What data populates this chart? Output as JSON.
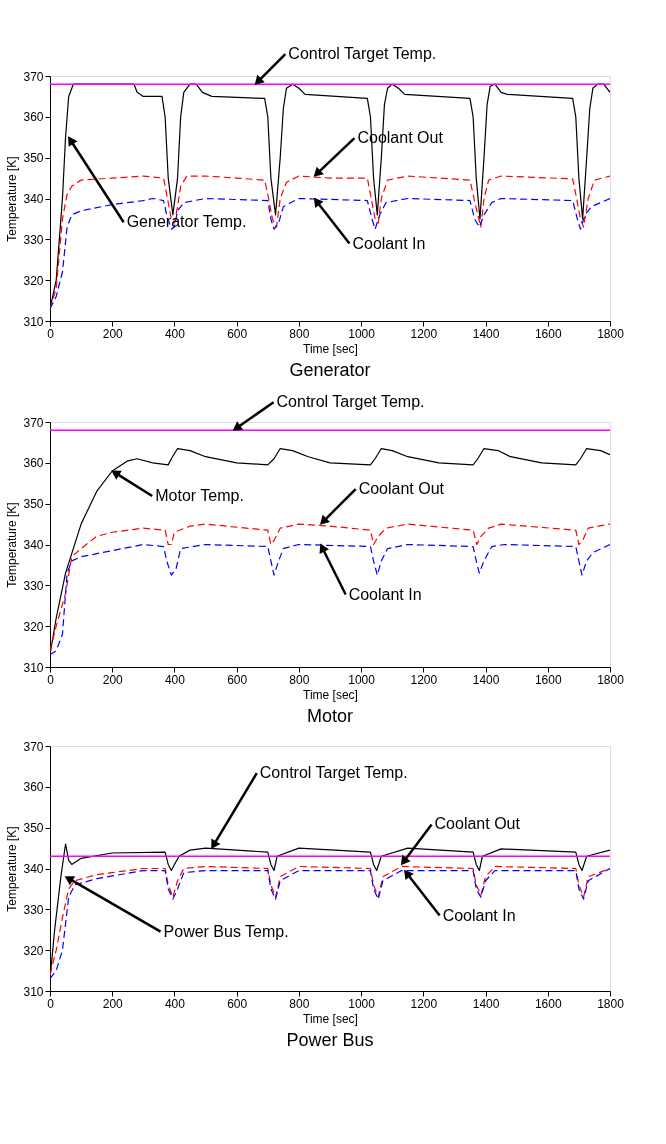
{
  "chart_data": [
    {
      "type": "line",
      "title": "Generator",
      "xlabel": "Time [sec]",
      "ylabel": "Temperature [K]",
      "xlim": [
        0,
        1800
      ],
      "ylim": [
        310,
        370
      ],
      "xticks": [
        0,
        200,
        400,
        600,
        800,
        1000,
        1200,
        1400,
        1600,
        1800
      ],
      "yticks": [
        310,
        320,
        330,
        340,
        350,
        360,
        370
      ],
      "grid": false,
      "series": [
        {
          "color": "#000000",
          "line_style": "solid",
          "x": [
            0,
            20,
            40,
            50,
            60,
            75,
            270,
            280,
            300,
            360,
            370,
            380,
            395,
            410,
            420,
            430,
            450,
            470,
            490,
            520,
            690,
            700,
            710,
            725,
            740,
            750,
            760,
            780,
            800,
            820,
            1020,
            1030,
            1040,
            1052,
            1065,
            1075,
            1085,
            1100,
            1120,
            1140,
            1350,
            1360,
            1370,
            1382,
            1395,
            1405,
            1415,
            1430,
            1450,
            1470,
            1680,
            1690,
            1700,
            1712,
            1725,
            1735,
            1745,
            1760,
            1780,
            1800
          ],
          "values": [
            313,
            320,
            340,
            355,
            365,
            368,
            368,
            366,
            365,
            365,
            360,
            345,
            336,
            345,
            360,
            366,
            368,
            368,
            366,
            365,
            364.5,
            360,
            345,
            336,
            350,
            362,
            367,
            368,
            367,
            365.5,
            364.5,
            360,
            345,
            336,
            350,
            363,
            367,
            368,
            367,
            365.5,
            364.5,
            360,
            345,
            335,
            350,
            363,
            367.5,
            368,
            366,
            365.5,
            364.5,
            360,
            345,
            335,
            350,
            362,
            367,
            368,
            368,
            366
          ]
        },
        {
          "color": "#ff0000",
          "line_style": "dashed",
          "x": [
            0,
            20,
            40,
            55,
            70,
            100,
            200,
            300,
            365,
            375,
            390,
            400,
            410,
            420,
            440,
            500,
            600,
            690,
            700,
            715,
            728,
            740,
            760,
            800,
            900,
            1020,
            1030,
            1045,
            1055,
            1065,
            1085,
            1150,
            1350,
            1360,
            1375,
            1385,
            1395,
            1410,
            1450,
            1680,
            1690,
            1705,
            1715,
            1730,
            1750,
            1800
          ],
          "values": [
            313,
            318,
            335,
            341,
            343,
            344.5,
            345,
            345.5,
            345,
            341,
            335,
            334,
            338,
            343,
            345.5,
            345.5,
            345,
            344.5,
            341,
            335,
            333,
            340,
            344,
            345.5,
            345,
            345,
            341,
            335,
            334,
            340,
            344.5,
            345.5,
            344.5,
            341,
            336,
            333,
            340,
            344.5,
            345.5,
            344.8,
            341,
            335,
            333,
            340,
            344.5,
            345.5
          ]
        },
        {
          "color": "#0000ff",
          "line_style": "dashed",
          "x": [
            0,
            20,
            40,
            55,
            70,
            100,
            200,
            300,
            330,
            365,
            375,
            390,
            400,
            410,
            430,
            500,
            700,
            710,
            720,
            735,
            750,
            800,
            1020,
            1035,
            1045,
            1060,
            1080,
            1150,
            1350,
            1365,
            1380,
            1395,
            1420,
            1450,
            1680,
            1695,
            1705,
            1720,
            1740,
            1800
          ],
          "values": [
            313,
            316,
            322,
            333,
            336,
            337,
            338.5,
            339.5,
            340,
            339.5,
            336,
            332.5,
            333,
            337,
            339,
            340,
            339.5,
            335,
            332.5,
            334,
            338,
            340,
            339.5,
            335,
            332.5,
            336,
            339,
            340,
            339.5,
            335,
            333,
            336,
            339,
            340,
            339.5,
            335,
            332.5,
            336,
            338,
            340
          ]
        }
      ],
      "ref_lines": [
        {
          "axis": "y",
          "value": 368,
          "color": "#ff00ff"
        }
      ],
      "annotations": [
        {
          "text": "Control Target Temp.",
          "x": 660,
          "y": 368
        },
        {
          "text": "Coolant Out",
          "x": 850,
          "y": 345.5
        },
        {
          "text": "Coolant In",
          "x": 850,
          "y": 340
        },
        {
          "text": "Generator Temp.",
          "x": 60,
          "y": 355
        }
      ]
    },
    {
      "type": "line",
      "title": "Motor",
      "xlabel": "Time [sec]",
      "ylabel": "Temperature [K]",
      "xlim": [
        0,
        1800
      ],
      "ylim": [
        310,
        370
      ],
      "xticks": [
        0,
        200,
        400,
        600,
        800,
        1000,
        1200,
        1400,
        1600,
        1800
      ],
      "yticks": [
        310,
        320,
        330,
        340,
        350,
        360,
        370
      ],
      "grid": false,
      "series": [
        {
          "color": "#000000",
          "line_style": "solid",
          "x": [
            0,
            20,
            50,
            100,
            150,
            200,
            250,
            280,
            330,
            380,
            390,
            410,
            450,
            500,
            600,
            700,
            720,
            740,
            780,
            830,
            900,
            1030,
            1045,
            1065,
            1100,
            1150,
            1250,
            1360,
            1375,
            1395,
            1440,
            1480,
            1580,
            1690,
            1705,
            1725,
            1770,
            1800
          ],
          "values": [
            313,
            322,
            333,
            345,
            353,
            358,
            360.5,
            361,
            360,
            359.5,
            361,
            363.5,
            363,
            361.5,
            360,
            359.5,
            361,
            363.5,
            363,
            361.5,
            360,
            359.5,
            361,
            363.5,
            363,
            361.5,
            360,
            359.5,
            361,
            363.5,
            363,
            361.5,
            360,
            359.5,
            361,
            363.5,
            363,
            362
          ]
        },
        {
          "color": "#ff0000",
          "line_style": "dashed",
          "x": [
            0,
            20,
            50,
            70,
            100,
            150,
            200,
            300,
            370,
            380,
            390,
            400,
            450,
            500,
            700,
            710,
            720,
            740,
            800,
            900,
            1030,
            1040,
            1055,
            1080,
            1150,
            1360,
            1372,
            1385,
            1410,
            1450,
            1690,
            1700,
            1712,
            1730,
            1800
          ],
          "values": [
            314,
            320,
            328,
            337,
            339,
            342,
            343,
            344,
            343.5,
            340,
            340,
            343,
            344.5,
            345,
            343.5,
            340,
            341,
            344,
            345,
            344.5,
            343.5,
            340,
            342,
            344,
            345,
            343.5,
            340,
            342,
            344,
            345,
            343.5,
            340,
            341,
            344,
            345
          ]
        },
        {
          "color": "#0000ff",
          "line_style": "dashed",
          "x": [
            0,
            20,
            40,
            55,
            70,
            100,
            200,
            300,
            365,
            375,
            390,
            405,
            420,
            500,
            700,
            710,
            720,
            735,
            750,
            800,
            1030,
            1040,
            1052,
            1065,
            1085,
            1150,
            1360,
            1370,
            1380,
            1395,
            1420,
            1460,
            1690,
            1700,
            1710,
            1725,
            1745,
            1800
          ],
          "values": [
            313,
            314,
            318,
            333,
            336,
            337,
            338.5,
            340,
            339.5,
            336,
            332.5,
            334,
            339,
            340,
            339.5,
            336,
            332.5,
            336,
            339,
            340,
            339.5,
            336,
            332.5,
            336,
            339,
            340,
            339.5,
            336,
            333,
            336,
            339.5,
            340,
            339.5,
            336,
            332.5,
            336,
            338,
            340
          ]
        }
      ],
      "ref_lines": [
        {
          "axis": "y",
          "value": 368,
          "color": "#ff00ff"
        }
      ],
      "annotations": [
        {
          "text": "Control Target Temp.",
          "x": 590,
          "y": 368
        },
        {
          "text": "Motor Temp.",
          "x": 200,
          "y": 358
        },
        {
          "text": "Coolant Out",
          "x": 870,
          "y": 345
        },
        {
          "text": "Coolant In",
          "x": 870,
          "y": 340
        }
      ]
    },
    {
      "type": "line",
      "title": "Power Bus",
      "xlabel": "Time [sec]",
      "ylabel": "Temperature [K]",
      "xlim": [
        0,
        1800
      ],
      "ylim": [
        310,
        370
      ],
      "xticks": [
        0,
        200,
        400,
        600,
        800,
        1000,
        1200,
        1400,
        1600,
        1800
      ],
      "yticks": [
        310,
        320,
        330,
        340,
        350,
        360,
        370
      ],
      "grid": false,
      "series": [
        {
          "color": "#000000",
          "line_style": "solid",
          "x": [
            0,
            15,
            35,
            50,
            60,
            70,
            100,
            200,
            370,
            380,
            390,
            400,
            415,
            450,
            500,
            600,
            700,
            710,
            720,
            730,
            800,
            1030,
            1040,
            1050,
            1065,
            1150,
            1360,
            1370,
            1380,
            1390,
            1450,
            1690,
            1700,
            1710,
            1725,
            1800
          ],
          "values": [
            313,
            325,
            338,
            346,
            342,
            341,
            342.5,
            343.8,
            344,
            341,
            339.5,
            341,
            343,
            344.5,
            345,
            344.5,
            344,
            341,
            339.5,
            343,
            345,
            344,
            341,
            339.5,
            343,
            345,
            344,
            341,
            339.5,
            343,
            344.8,
            344,
            341,
            339.5,
            343,
            344.5
          ]
        },
        {
          "color": "#ff0000",
          "line_style": "dashed",
          "x": [
            0,
            20,
            40,
            60,
            80,
            150,
            200,
            300,
            370,
            380,
            395,
            410,
            430,
            500,
            700,
            710,
            725,
            740,
            800,
            1030,
            1040,
            1055,
            1070,
            1130,
            1360,
            1370,
            1385,
            1400,
            1430,
            1690,
            1700,
            1715,
            1730,
            1800
          ],
          "values": [
            314,
            320,
            328,
            335,
            337,
            338.5,
            339,
            340,
            340,
            336,
            333,
            337,
            340,
            340.5,
            340,
            336,
            333,
            338,
            340.5,
            340,
            336,
            333,
            338,
            340.5,
            340,
            336,
            333.5,
            338,
            340.5,
            340,
            336,
            333,
            338,
            340
          ]
        },
        {
          "color": "#0000ff",
          "line_style": "dashed",
          "x": [
            0,
            20,
            40,
            60,
            80,
            150,
            300,
            370,
            380,
            395,
            410,
            430,
            500,
            700,
            710,
            725,
            740,
            800,
            1030,
            1040,
            1055,
            1070,
            1130,
            1360,
            1370,
            1385,
            1400,
            1430,
            1690,
            1700,
            1715,
            1730,
            1800
          ],
          "values": [
            313,
            315,
            320,
            333,
            336,
            337.5,
            339.5,
            339.5,
            335,
            332.5,
            335,
            339,
            339.5,
            339.5,
            335,
            332.5,
            337,
            339.5,
            339.5,
            335,
            332.5,
            337,
            339.5,
            339.5,
            335,
            333,
            337,
            339.5,
            339.5,
            335,
            332.5,
            337,
            340
          ]
        }
      ],
      "ref_lines": [
        {
          "axis": "y",
          "value": 343,
          "color": "#ff00ff"
        }
      ],
      "annotations": [
        {
          "text": "Control Target Temp.",
          "x": 520,
          "y": 345
        },
        {
          "text": "Coolant Out",
          "x": 1130,
          "y": 341
        },
        {
          "text": "Coolant In",
          "x": 1140,
          "y": 339.5
        },
        {
          "text": "Power Bus Temp.",
          "x": 50,
          "y": 338
        }
      ]
    }
  ]
}
